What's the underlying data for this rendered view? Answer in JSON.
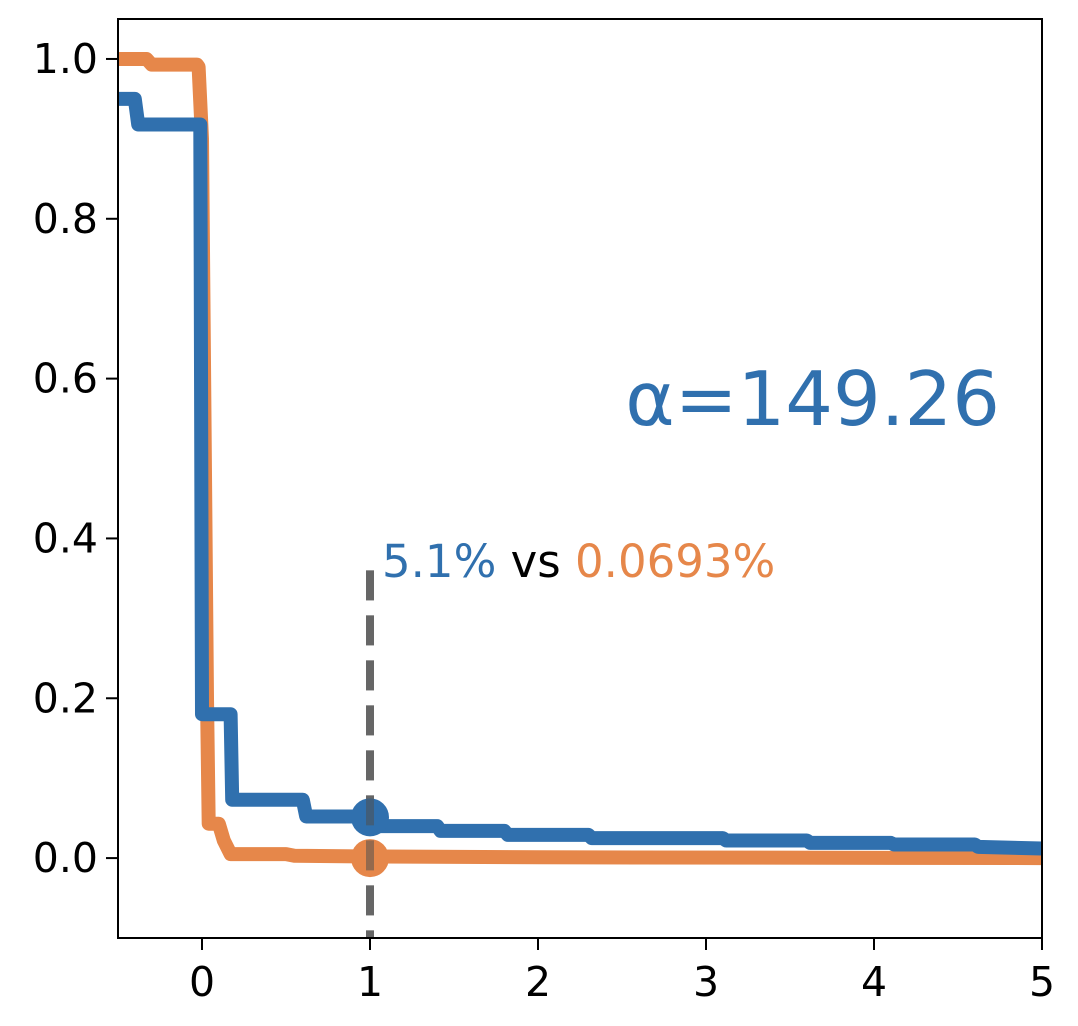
{
  "chart_data": {
    "type": "line",
    "title": "",
    "xlabel": "",
    "ylabel": "",
    "xlim": [
      -0.5,
      5
    ],
    "ylim": [
      -0.1,
      1.05
    ],
    "x_ticks": [
      "0",
      "1",
      "2",
      "3",
      "4",
      "5"
    ],
    "y_ticks": [
      "0.0",
      "0.2",
      "0.4",
      "0.6",
      "0.8",
      "1.0"
    ],
    "grid": false,
    "threshold_x": 1,
    "series": [
      {
        "color": "#3070ae",
        "points": [
          [
            -0.5,
            0.95
          ],
          [
            -0.4,
            0.95
          ],
          [
            -0.38,
            0.918
          ],
          [
            -0.3,
            0.918
          ],
          [
            -0.01,
            0.918
          ],
          [
            0.0,
            0.18
          ],
          [
            0.17,
            0.18
          ],
          [
            0.18,
            0.073
          ],
          [
            0.6,
            0.073
          ],
          [
            0.62,
            0.052
          ],
          [
            0.98,
            0.052
          ],
          [
            1.0,
            0.04
          ],
          [
            1.4,
            0.04
          ],
          [
            1.42,
            0.034
          ],
          [
            1.8,
            0.034
          ],
          [
            1.82,
            0.029
          ],
          [
            2.3,
            0.029
          ],
          [
            2.32,
            0.025
          ],
          [
            3.1,
            0.025
          ],
          [
            3.12,
            0.022
          ],
          [
            3.6,
            0.022
          ],
          [
            3.62,
            0.019
          ],
          [
            4.1,
            0.019
          ],
          [
            4.12,
            0.017
          ],
          [
            4.6,
            0.017
          ],
          [
            4.62,
            0.014
          ],
          [
            5.0,
            0.012
          ]
        ]
      },
      {
        "color": "#e6874a",
        "points": [
          [
            -0.5,
            1.0
          ],
          [
            -0.33,
            1.0
          ],
          [
            -0.3,
            0.993
          ],
          [
            -0.03,
            0.993
          ],
          [
            -0.02,
            0.99
          ],
          [
            0.0,
            0.9
          ],
          [
            0.03,
            0.2
          ],
          [
            0.04,
            0.043
          ],
          [
            0.1,
            0.043
          ],
          [
            0.13,
            0.022
          ],
          [
            0.17,
            0.005
          ],
          [
            0.5,
            0.005
          ],
          [
            0.55,
            0.003
          ],
          [
            1.0,
            0.002
          ],
          [
            2.0,
            0.001
          ],
          [
            5.0,
            0.0
          ]
        ]
      }
    ],
    "markers": [
      {
        "x": 1,
        "y": 0.051,
        "color": "#3070ae"
      },
      {
        "x": 1,
        "y": 0.0,
        "color": "#e6874a"
      }
    ],
    "annotations": {
      "alpha": {
        "text": "α=149.26",
        "color": "#3070ae"
      },
      "comparison": {
        "left": "5.1%",
        "middle": "vs",
        "right": "0.0693%",
        "left_color": "#3070ae",
        "middle_color": "#000000",
        "right_color": "#e6874a"
      }
    }
  }
}
